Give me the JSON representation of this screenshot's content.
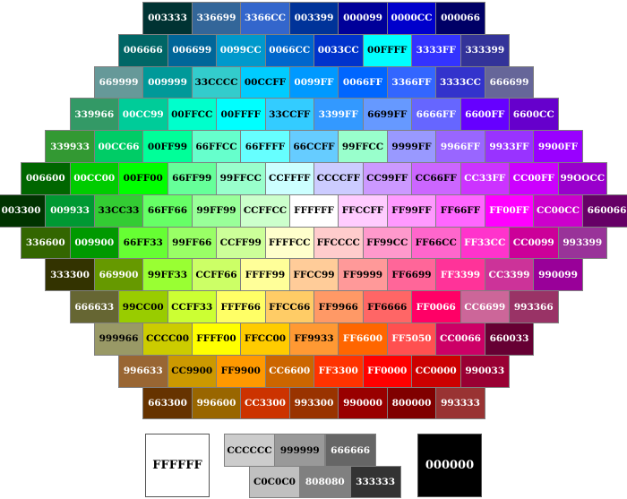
{
  "hex_rows": [
    [
      "003333",
      "336699",
      "3366CC",
      "003399",
      "000099",
      "0000CC",
      "000066"
    ],
    [
      "006666",
      "006699",
      "0099CC",
      "0066CC",
      "0033CC",
      "00FFFF",
      "3333FF",
      "333399"
    ],
    [
      "669999",
      "009999",
      "33CCCC",
      "00CCFF",
      "0099FF",
      "0066FF",
      "3366FF",
      "3333CC",
      "666699"
    ],
    [
      "339966",
      "00CC99",
      "00FFCC",
      "00FFFF",
      "33CCFF",
      "3399FF",
      "6699FF",
      "6666FF",
      "6600FF",
      "6600CC"
    ],
    [
      "339933",
      "00CC66",
      "00FF99",
      "66FFCC",
      "66FFFF",
      "66CCFF",
      "99FFCC",
      "9999FF",
      "9966FF",
      "9933FF",
      "9900FF"
    ],
    [
      "006600",
      "00CC00",
      "00FF00",
      "66FF99",
      "99FFCC",
      "CCFFFF",
      "CCCCFF",
      "CC99FF",
      "CC66FF",
      "CC33FF",
      "CC00FF",
      "99OOCC"
    ],
    [
      "003300",
      "009933",
      "33CC33",
      "66FF66",
      "99FF99",
      "CCFFCC",
      "FFFFFF",
      "FFCCFF",
      "FF99FF",
      "FF66FF",
      "FF00FF",
      "CC00CC",
      "660066"
    ],
    [
      "336600",
      "009900",
      "66FF33",
      "99FF66",
      "CCFF99",
      "FFFFCC",
      "FFCCCC",
      "FF99CC",
      "FF66CC",
      "FF33CC",
      "CC0099",
      "993399"
    ],
    [
      "333300",
      "669900",
      "99FF33",
      "CCFF66",
      "FFFF99",
      "FFCC99",
      "FF9999",
      "FF6699",
      "FF3399",
      "CC3399",
      "990099"
    ],
    [
      "666633",
      "99CC00",
      "CCFF33",
      "FFFF66",
      "FFCC66",
      "FF9966",
      "FF6666",
      "FF0066",
      "CC6699",
      "993366"
    ],
    [
      "999966",
      "CCCC00",
      "FFFF00",
      "FFCC00",
      "FF9933",
      "FF6600",
      "FF5050",
      "CC0066",
      "660033"
    ],
    [
      "996633",
      "CC9900",
      "FF9900",
      "CC6600",
      "FF3300",
      "FF0000",
      "CC0000",
      "990033"
    ],
    [
      "663300",
      "996600",
      "CC3300",
      "993300",
      "990000",
      "800000",
      "993333"
    ]
  ],
  "grays": {
    "white": "FFFFFF",
    "light_row": [
      "CCCCCC",
      "999999",
      "666666"
    ],
    "dark_row": [
      "C0C0C0",
      "808080",
      "333333"
    ],
    "black": "000000"
  }
}
